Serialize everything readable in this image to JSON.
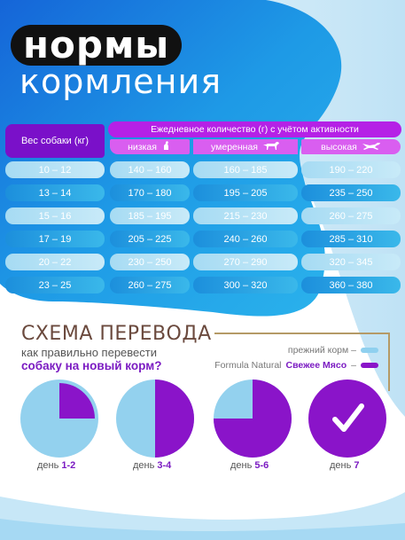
{
  "header": {
    "title_line1": "нормы",
    "title_line2": "кормления"
  },
  "table": {
    "weight_header": "Вес собаки (кг)",
    "daily_header": "Ежедневное количество (г) с учётом активности",
    "activity": [
      "низкая",
      "умеренная",
      "высокая"
    ],
    "rows": [
      [
        "10 – 12",
        "140 – 160",
        "160 – 185",
        "190 – 220"
      ],
      [
        "13 – 14",
        "170 – 180",
        "195 – 205",
        "235 – 250"
      ],
      [
        "15 – 16",
        "185 – 195",
        "215 – 230",
        "260 – 275"
      ],
      [
        "17 – 19",
        "205 – 225",
        "240 – 260",
        "285 – 310"
      ],
      [
        "20 – 22",
        "230 – 250",
        "270 – 290",
        "320 – 345"
      ],
      [
        "23 – 25",
        "260 – 275",
        "300 – 320",
        "360 – 380"
      ]
    ]
  },
  "scheme": {
    "title": "СХЕМА ПЕРЕВОДА",
    "question_line1": "как правильно перевести",
    "question_line2": "собаку на новый корм?",
    "legend_old": "прежний корм –",
    "legend_new_prefix": "Formula Natural",
    "legend_new_bold": "Свежее Мясо",
    "legend_new_suffix": "–",
    "day_word": "день",
    "days": [
      {
        "label": "1-2",
        "new_fraction": 0.25
      },
      {
        "label": "3-4",
        "new_fraction": 0.5
      },
      {
        "label": "5-6",
        "new_fraction": 0.75
      },
      {
        "label": "7",
        "new_fraction": 1.0
      }
    ]
  },
  "colors": {
    "purple": "#8a14c9",
    "magenta": "#b521e6",
    "light_blue": "#8fd0ef",
    "deep_blue": "#1f9fe0",
    "brown_text": "#6b4a3e"
  },
  "icons": {
    "checkmark": "checkmark-icon",
    "dogs": [
      "dog-sitting-icon",
      "dog-walking-icon",
      "dog-running-icon"
    ]
  }
}
